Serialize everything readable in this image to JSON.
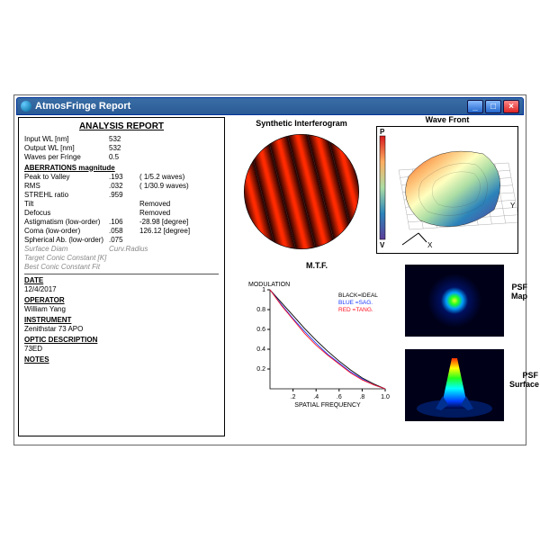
{
  "window": {
    "title": "AtmosFringe  Report"
  },
  "report": {
    "title": "ANALYSIS  REPORT",
    "params": {
      "input_wl": {
        "label": "Input WL [nm]",
        "value": "532"
      },
      "output_wl": {
        "label": "Output WL [nm]",
        "value": "532"
      },
      "wpf": {
        "label": "Waves per Fringe",
        "value": "0.5"
      }
    },
    "aberrations": {
      "heading": "ABERRATIONS magnitude",
      "rows": [
        {
          "k": "Peak to Valley",
          "v1": ".193",
          "v2": "( 1/5.2 waves)"
        },
        {
          "k": "RMS",
          "v1": ".032",
          "v2": "( 1/30.9 waves)"
        },
        {
          "k": "STREHL ratio",
          "v1": ".959",
          "v2": ""
        },
        {
          "k": "Tilt",
          "v1": "",
          "v2": "Removed"
        },
        {
          "k": "Defocus",
          "v1": "",
          "v2": "Removed"
        },
        {
          "k": "Astigmatism (low-order)",
          "v1": ".106",
          "v2": "-28.98  [degree]"
        },
        {
          "k": "Coma            (low-order)",
          "v1": ".058",
          "v2": "126.12  [degree]"
        },
        {
          "k": "Spherical Ab. (low-order)",
          "v1": ".075",
          "v2": ""
        }
      ]
    },
    "greyed": [
      {
        "k": "Surface Diam",
        "v": "Curv.Radius"
      },
      {
        "k": "Target Conic Constant [K]",
        "v": ""
      },
      {
        "k": "Best Conic Constant Fit",
        "v": ""
      }
    ],
    "meta": {
      "date": {
        "h": "DATE",
        "v": "12/4/2017"
      },
      "op": {
        "h": "OPERATOR",
        "v": "William Yang"
      },
      "inst": {
        "h": "INSTRUMENT",
        "v": "Zenithstar 73 APO"
      },
      "optic": {
        "h": "OPTIC DESCRIPTION",
        "v": "73ED"
      },
      "notes": {
        "h": "NOTES",
        "v": ""
      }
    }
  },
  "interferogram": {
    "title": "Synthetic Interferogram",
    "stripe_colors": [
      "#800000",
      "#ff1a00",
      "#330000"
    ],
    "stripe_count": 6
  },
  "wavefront": {
    "title": "Wave Front",
    "axis": {
      "p": "P",
      "v": "V",
      "x": "X",
      "y": "Y"
    },
    "gradient": [
      "#d7191c",
      "#fdae61",
      "#ffffbf",
      "#abdda4",
      "#2b83ba",
      "#5e3c99"
    ],
    "bg": "#ffffff",
    "grid": "#999999"
  },
  "mtf": {
    "title": "M.T.F.",
    "ylabel": "MODULATION",
    "xlabel": "SPATIAL FREQUENCY",
    "legend": {
      "black": "BLACK=IDEAL",
      "blue": "BLUE  =SAG.",
      "red": "RED   =TANG."
    },
    "ylim": [
      0,
      1
    ],
    "xlim": [
      0,
      1
    ],
    "yticks": [
      "0.2",
      "0.4",
      "0.6",
      "0.8",
      "1"
    ],
    "xticks": [
      ".2",
      ".4",
      ".6",
      ".8",
      "1.0"
    ],
    "ideal": [
      [
        0,
        1
      ],
      [
        0.1,
        0.87
      ],
      [
        0.2,
        0.74
      ],
      [
        0.3,
        0.61
      ],
      [
        0.4,
        0.49
      ],
      [
        0.5,
        0.38
      ],
      [
        0.6,
        0.28
      ],
      [
        0.7,
        0.19
      ],
      [
        0.8,
        0.11
      ],
      [
        0.9,
        0.05
      ],
      [
        1.0,
        0
      ]
    ],
    "sag": [
      [
        0,
        1
      ],
      [
        0.1,
        0.85
      ],
      [
        0.2,
        0.71
      ],
      [
        0.3,
        0.58
      ],
      [
        0.4,
        0.46
      ],
      [
        0.5,
        0.35
      ],
      [
        0.6,
        0.26
      ],
      [
        0.7,
        0.17
      ],
      [
        0.8,
        0.1
      ],
      [
        0.9,
        0.04
      ],
      [
        1.0,
        0
      ]
    ],
    "tang": [
      [
        0,
        1
      ],
      [
        0.1,
        0.84
      ],
      [
        0.2,
        0.7
      ],
      [
        0.3,
        0.56
      ],
      [
        0.4,
        0.44
      ],
      [
        0.5,
        0.34
      ],
      [
        0.6,
        0.25
      ],
      [
        0.7,
        0.16
      ],
      [
        0.8,
        0.09
      ],
      [
        0.9,
        0.04
      ],
      [
        1.0,
        0
      ]
    ],
    "series_colors": {
      "ideal": "#000000",
      "sag": "#1b38ff",
      "tang": "#ff1020"
    }
  },
  "psf": {
    "map": {
      "label": "PSF\nMap",
      "gradient": [
        "#000033",
        "#0030ff",
        "#00ffff",
        "#20ff20",
        "#ffff00",
        "#ff3000"
      ]
    },
    "surf": {
      "label": "PSF\nSurface",
      "gradient": [
        "#000033",
        "#0030ff",
        "#00ffff",
        "#20ff20",
        "#ffff00",
        "#ff3000"
      ]
    }
  }
}
